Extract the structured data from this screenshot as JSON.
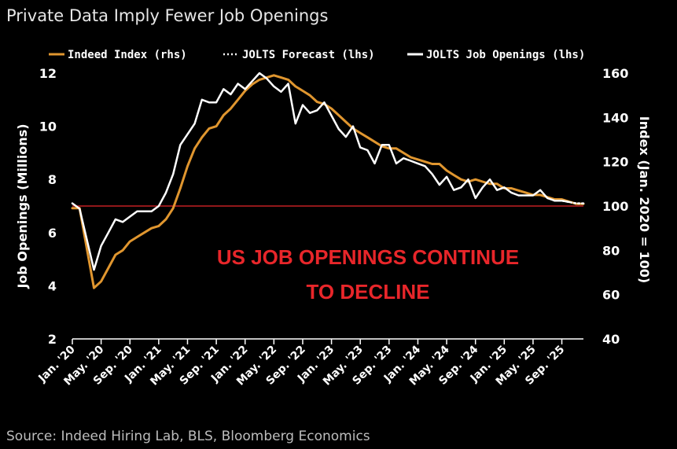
{
  "colors": {
    "background": "#000000",
    "indeed": "#e0962f",
    "jolts": "#ffffff",
    "reference_line": "#e8262a",
    "annotation": "#e8262a"
  },
  "chart_data": {
    "type": "line",
    "title": "Private Data Imply Fewer Job Openings",
    "source": "Source: Indeed Hiring Lab, BLS, Bloomberg Economics",
    "annotation": [
      "US JOB OPENINGS CONTINUE",
      "TO DECLINE"
    ],
    "xlabel": "",
    "ylabel_left": "Job Openings (Millions)",
    "ylabel_right": "Index (Jan. 2020 = 100)",
    "ylim_left": [
      2,
      12
    ],
    "ylim_right": [
      40,
      160
    ],
    "yticks_left": [
      "2",
      "4",
      "6",
      "8",
      "10",
      "12"
    ],
    "yticks_right": [
      "40",
      "60",
      "80",
      "100",
      "120",
      "140",
      "160"
    ],
    "xlim": [
      "2020-01",
      "2025-12"
    ],
    "xticks": [
      {
        "date": "2020-01",
        "label": "Jan. '20"
      },
      {
        "date": "2020-05",
        "label": "May. '20"
      },
      {
        "date": "2020-09",
        "label": "Sep. '20"
      },
      {
        "date": "2021-01",
        "label": "Jan. '21"
      },
      {
        "date": "2021-05",
        "label": "May. '21"
      },
      {
        "date": "2021-09",
        "label": "Sep. '21"
      },
      {
        "date": "2022-01",
        "label": "Jan. '22"
      },
      {
        "date": "2022-05",
        "label": "May. '22"
      },
      {
        "date": "2022-09",
        "label": "Sep. '22"
      },
      {
        "date": "2023-01",
        "label": "Jan. '23"
      },
      {
        "date": "2023-05",
        "label": "May. '23"
      },
      {
        "date": "2023-09",
        "label": "Sep. '23"
      },
      {
        "date": "2024-01",
        "label": "Jan. '24"
      },
      {
        "date": "2024-05",
        "label": "May. '24"
      },
      {
        "date": "2024-09",
        "label": "Sep. '24"
      },
      {
        "date": "2025-01",
        "label": "Jan. '25"
      },
      {
        "date": "2025-05",
        "label": "May. '25"
      },
      {
        "date": "2025-09",
        "label": "Sep. '25"
      }
    ],
    "reference_line": {
      "axis": "right",
      "value": 100
    },
    "legend": {
      "placement": "top",
      "entries": [
        "Indeed Index (rhs)",
        "JOLTS Forecast (lhs)",
        "JOLTS Job Openings (lhs)"
      ]
    },
    "series": [
      {
        "name": "Indeed Index (rhs)",
        "axis": "right",
        "style": "solid",
        "points": [
          [
            "2020-01",
            99
          ],
          [
            "2020-02",
            99
          ],
          [
            "2020-04",
            63
          ],
          [
            "2020-05",
            66
          ],
          [
            "2020-06",
            72
          ],
          [
            "2020-07",
            78
          ],
          [
            "2020-08",
            80
          ],
          [
            "2020-09",
            84
          ],
          [
            "2020-10",
            86
          ],
          [
            "2020-11",
            88
          ],
          [
            "2020-12",
            90
          ],
          [
            "2021-01",
            91
          ],
          [
            "2021-02",
            94
          ],
          [
            "2021-03",
            99
          ],
          [
            "2021-04",
            108
          ],
          [
            "2021-05",
            118
          ],
          [
            "2021-06",
            126
          ],
          [
            "2021-07",
            131
          ],
          [
            "2021-08",
            135
          ],
          [
            "2021-09",
            136
          ],
          [
            "2021-10",
            141
          ],
          [
            "2021-11",
            144
          ],
          [
            "2021-12",
            148
          ],
          [
            "2022-01",
            152
          ],
          [
            "2022-02",
            155
          ],
          [
            "2022-03",
            157
          ],
          [
            "2022-04",
            158
          ],
          [
            "2022-05",
            159
          ],
          [
            "2022-06",
            158
          ],
          [
            "2022-07",
            157
          ],
          [
            "2022-08",
            154
          ],
          [
            "2022-09",
            152
          ],
          [
            "2022-10",
            150
          ],
          [
            "2022-11",
            147
          ],
          [
            "2022-12",
            146
          ],
          [
            "2023-01",
            144
          ],
          [
            "2023-02",
            141
          ],
          [
            "2023-03",
            138
          ],
          [
            "2023-04",
            135
          ],
          [
            "2023-05",
            133
          ],
          [
            "2023-06",
            131
          ],
          [
            "2023-07",
            129
          ],
          [
            "2023-08",
            127
          ],
          [
            "2023-09",
            126
          ],
          [
            "2023-10",
            126
          ],
          [
            "2023-11",
            124
          ],
          [
            "2023-12",
            122
          ],
          [
            "2024-01",
            121
          ],
          [
            "2024-02",
            120
          ],
          [
            "2024-03",
            119
          ],
          [
            "2024-04",
            119
          ],
          [
            "2024-05",
            116
          ],
          [
            "2024-06",
            114
          ],
          [
            "2024-07",
            112
          ],
          [
            "2024-08",
            111
          ],
          [
            "2024-09",
            112
          ],
          [
            "2024-10",
            111
          ],
          [
            "2024-11",
            110
          ],
          [
            "2024-12",
            110
          ],
          [
            "2025-01",
            108
          ],
          [
            "2025-02",
            108
          ],
          [
            "2025-03",
            107
          ],
          [
            "2025-04",
            106
          ],
          [
            "2025-05",
            105
          ],
          [
            "2025-06",
            105
          ],
          [
            "2025-07",
            104
          ],
          [
            "2025-08",
            103
          ],
          [
            "2025-09",
            103
          ],
          [
            "2025-10",
            102
          ],
          [
            "2025-11",
            101
          ],
          [
            "2025-12",
            101
          ]
        ]
      },
      {
        "name": "JOLTS Forecast (lhs)",
        "axis": "left",
        "style": "dotted",
        "points": [
          [
            "2025-08",
            7.2
          ],
          [
            "2025-09",
            7.2
          ],
          [
            "2025-10",
            7.15
          ],
          [
            "2025-11",
            7.1
          ],
          [
            "2025-12",
            7.1
          ]
        ]
      },
      {
        "name": "JOLTS Job Openings (lhs)",
        "axis": "left",
        "style": "solid",
        "points": [
          [
            "2020-01",
            7.1
          ],
          [
            "2020-02",
            6.9
          ],
          [
            "2020-04",
            4.6
          ],
          [
            "2020-05",
            5.5
          ],
          [
            "2020-06",
            6.0
          ],
          [
            "2020-07",
            6.5
          ],
          [
            "2020-08",
            6.4
          ],
          [
            "2020-09",
            6.6
          ],
          [
            "2020-10",
            6.8
          ],
          [
            "2020-11",
            6.8
          ],
          [
            "2020-12",
            6.8
          ],
          [
            "2021-01",
            7.0
          ],
          [
            "2021-02",
            7.5
          ],
          [
            "2021-03",
            8.2
          ],
          [
            "2021-04",
            9.3
          ],
          [
            "2021-05",
            9.7
          ],
          [
            "2021-06",
            10.1
          ],
          [
            "2021-07",
            11.0
          ],
          [
            "2021-08",
            10.9
          ],
          [
            "2021-09",
            10.9
          ],
          [
            "2021-10",
            11.4
          ],
          [
            "2021-11",
            11.2
          ],
          [
            "2021-12",
            11.6
          ],
          [
            "2022-01",
            11.4
          ],
          [
            "2022-02",
            11.7
          ],
          [
            "2022-03",
            12.0
          ],
          [
            "2022-04",
            11.8
          ],
          [
            "2022-05",
            11.5
          ],
          [
            "2022-06",
            11.3
          ],
          [
            "2022-07",
            11.6
          ],
          [
            "2022-08",
            10.1
          ],
          [
            "2022-09",
            10.8
          ],
          [
            "2022-10",
            10.5
          ],
          [
            "2022-11",
            10.6
          ],
          [
            "2022-12",
            10.9
          ],
          [
            "2023-01",
            10.4
          ],
          [
            "2023-02",
            9.9
          ],
          [
            "2023-03",
            9.6
          ],
          [
            "2023-04",
            10.0
          ],
          [
            "2023-05",
            9.2
          ],
          [
            "2023-06",
            9.1
          ],
          [
            "2023-07",
            8.6
          ],
          [
            "2023-08",
            9.3
          ],
          [
            "2023-09",
            9.3
          ],
          [
            "2023-10",
            8.6
          ],
          [
            "2023-11",
            8.8
          ],
          [
            "2023-12",
            8.7
          ],
          [
            "2024-01",
            8.6
          ],
          [
            "2024-02",
            8.5
          ],
          [
            "2024-03",
            8.2
          ],
          [
            "2024-04",
            7.8
          ],
          [
            "2024-05",
            8.1
          ],
          [
            "2024-06",
            7.6
          ],
          [
            "2024-07",
            7.7
          ],
          [
            "2024-08",
            8.0
          ],
          [
            "2024-09",
            7.3
          ],
          [
            "2024-10",
            7.7
          ],
          [
            "2024-11",
            8.0
          ],
          [
            "2024-12",
            7.6
          ],
          [
            "2025-01",
            7.7
          ],
          [
            "2025-02",
            7.5
          ],
          [
            "2025-03",
            7.4
          ],
          [
            "2025-04",
            7.4
          ],
          [
            "2025-05",
            7.4
          ],
          [
            "2025-06",
            7.6
          ],
          [
            "2025-07",
            7.3
          ],
          [
            "2025-08",
            7.2
          ],
          [
            "2025-09",
            7.2
          ],
          [
            "2025-10",
            7.15
          ]
        ]
      }
    ]
  }
}
